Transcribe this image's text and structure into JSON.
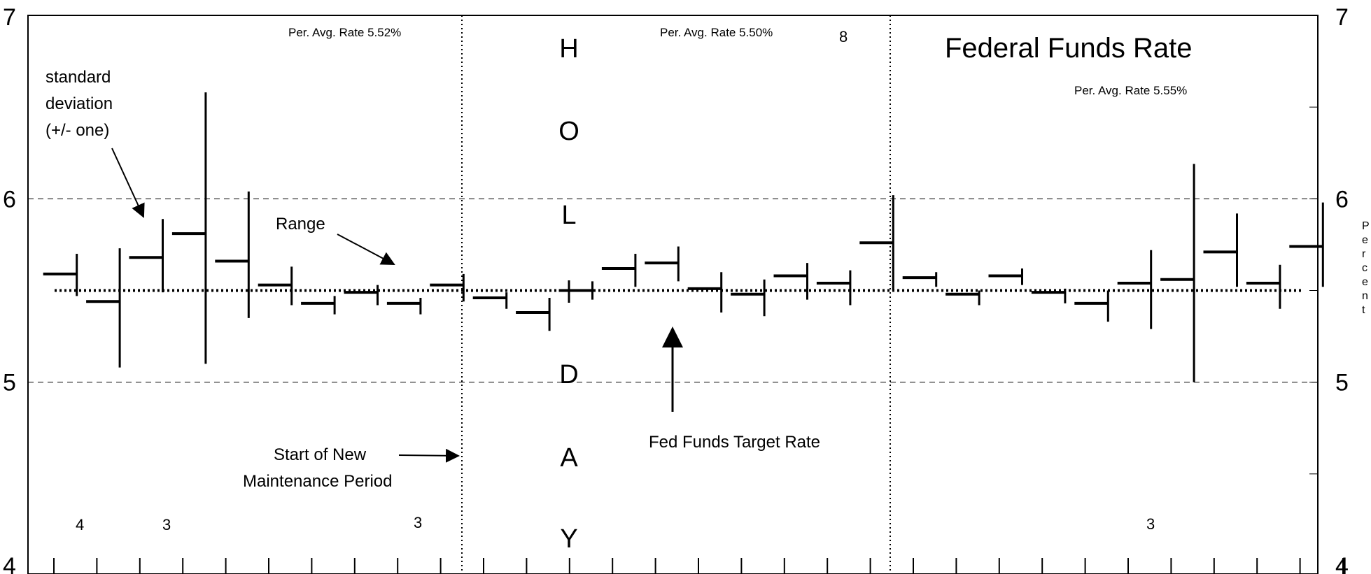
{
  "chart_data": {
    "type": "range-bar",
    "title": "Federal Funds Rate",
    "ylabel": "Percent",
    "ylim": [
      4,
      7
    ],
    "yticks": [
      "4",
      "5",
      "6",
      "7"
    ],
    "target_rate": 5.5,
    "periods": [
      {
        "label": "Per. Avg. Rate 5.52%",
        "counts": [
          "4",
          "3",
          "3"
        ]
      },
      {
        "label": "Per. Avg. Rate 5.50%",
        "counts": [
          "8"
        ]
      },
      {
        "label": "Per. Avg. Rate 5.55%",
        "counts": [
          "3"
        ]
      }
    ],
    "holiday_letters": [
      "H",
      "O",
      "L",
      "I",
      "D",
      "A",
      "Y"
    ],
    "annotations": {
      "std_dev": [
        "standard",
        "deviation",
        "(+/- one)"
      ],
      "range": "Range",
      "maintenance": [
        "Start of New",
        "Maintenance Period"
      ],
      "target": "Fed Funds Target Rate"
    },
    "bars": [
      {
        "day": 1,
        "avg": 5.59,
        "low": 5.47,
        "high": 5.7
      },
      {
        "day": 2,
        "avg": 5.44,
        "low": 5.08,
        "high": 5.73
      },
      {
        "day": 3,
        "avg": 5.68,
        "low": 5.49,
        "high": 5.89
      },
      {
        "day": 4,
        "avg": 5.81,
        "low": 5.1,
        "high": 6.58
      },
      {
        "day": 5,
        "avg": 5.66,
        "low": 5.35,
        "high": 6.04
      },
      {
        "day": 6,
        "avg": 5.53,
        "low": 5.42,
        "high": 5.63
      },
      {
        "day": 7,
        "avg": 5.43,
        "low": 5.37,
        "high": 5.47
      },
      {
        "day": 8,
        "avg": 5.49,
        "low": 5.42,
        "high": 5.53
      },
      {
        "day": 9,
        "avg": 5.43,
        "low": 5.37,
        "high": 5.46
      },
      {
        "day": 10,
        "avg": 5.53,
        "low": 5.44,
        "high": 5.59
      },
      {
        "day": 11,
        "avg": 5.46,
        "low": 5.4,
        "high": 5.49
      },
      {
        "day": 12,
        "avg": 5.38,
        "low": 5.28,
        "high": 5.46
      },
      {
        "day": 13,
        "avg": 5.5,
        "low": 5.45,
        "high": 5.55
      },
      {
        "day": 14,
        "avg": 5.62,
        "low": 5.52,
        "high": 5.7
      },
      {
        "day": 15,
        "avg": 5.65,
        "low": 5.55,
        "high": 5.74
      },
      {
        "day": 16,
        "avg": 5.51,
        "low": 5.38,
        "high": 5.6
      },
      {
        "day": 17,
        "avg": 5.48,
        "low": 5.36,
        "high": 5.56
      },
      {
        "day": 18,
        "avg": 5.58,
        "low": 5.45,
        "high": 5.65
      },
      {
        "day": 19,
        "avg": 5.54,
        "low": 5.42,
        "high": 5.61
      },
      {
        "day": 20,
        "avg": 5.76,
        "low": 5.5,
        "high": 6.02
      },
      {
        "day": 21,
        "avg": 5.57,
        "low": 5.52,
        "high": 5.6
      },
      {
        "day": 22,
        "avg": 5.48,
        "low": 5.42,
        "high": 5.5
      },
      {
        "day": 23,
        "avg": 5.58,
        "low": 5.53,
        "high": 5.62
      },
      {
        "day": 24,
        "avg": 5.49,
        "low": 5.43,
        "high": 5.51
      },
      {
        "day": 25,
        "avg": 5.43,
        "low": 5.33,
        "high": 5.5
      },
      {
        "day": 26,
        "avg": 5.54,
        "low": 5.29,
        "high": 5.72
      },
      {
        "day": 27,
        "avg": 5.56,
        "low": 5.0,
        "high": 6.19
      },
      {
        "day": 28,
        "avg": 5.71,
        "low": 5.52,
        "high": 5.92
      },
      {
        "day": 29,
        "avg": 5.54,
        "low": 5.4,
        "high": 5.64
      },
      {
        "day": 30,
        "avg": 5.74,
        "low": 5.52,
        "high": 5.98
      }
    ]
  }
}
